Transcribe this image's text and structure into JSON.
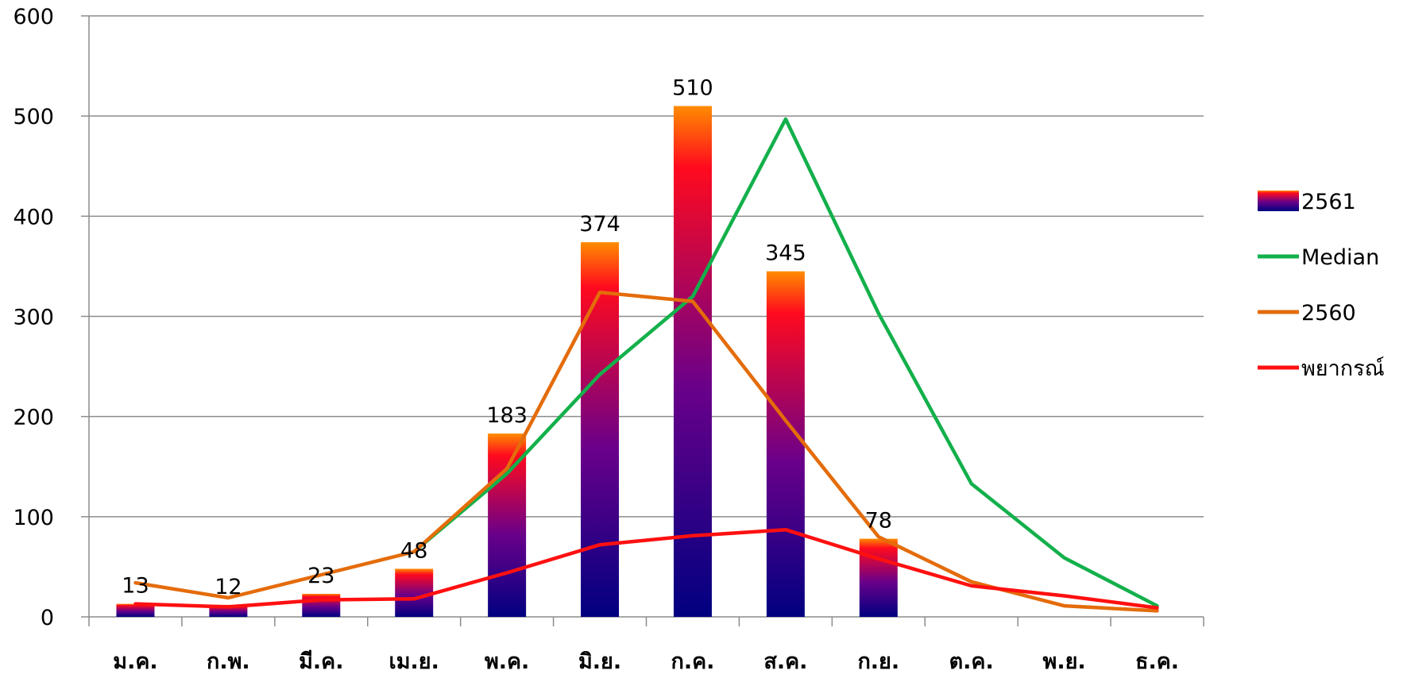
{
  "chart_data": {
    "type": "bar",
    "categories": [
      "ม.ค.",
      "ก.พ.",
      "มี.ค.",
      "เม.ย.",
      "พ.ค.",
      "มิ.ย.",
      "ก.ค.",
      "ส.ค.",
      "ก.ย.",
      "ต.ค.",
      "พ.ย.",
      "ธ.ค."
    ],
    "ylim": [
      0,
      600
    ],
    "yticks": [
      0,
      100,
      200,
      300,
      400,
      500,
      600
    ],
    "grid": true,
    "legend_position": "right",
    "series": [
      {
        "name": "2561",
        "kind": "bar",
        "values": [
          13,
          12,
          23,
          48,
          183,
          374,
          510,
          345,
          78,
          null,
          null,
          null
        ],
        "data_labels": [
          "13",
          "12",
          "23",
          "48",
          "183",
          "374",
          "510",
          "345",
          "78"
        ],
        "gradient_top": "#ff8c00",
        "gradient_mid": "#ff0a1e",
        "gradient_bottom": "#000080"
      },
      {
        "name": "Median",
        "kind": "line",
        "color": "#13b04b",
        "values": [
          null,
          null,
          null,
          65,
          143,
          242,
          320,
          497,
          303,
          133,
          59,
          11
        ]
      },
      {
        "name": "2560",
        "kind": "line",
        "color": "#e46c0a",
        "values": [
          34,
          19,
          42,
          65,
          148,
          324,
          315,
          196,
          80,
          35,
          11,
          6
        ]
      },
      {
        "name": "พยากรณ์",
        "kind": "line",
        "color": "#ff1010",
        "values": [
          13,
          10,
          17,
          18,
          44,
          72,
          81,
          87,
          58,
          31,
          21,
          9
        ]
      }
    ]
  }
}
